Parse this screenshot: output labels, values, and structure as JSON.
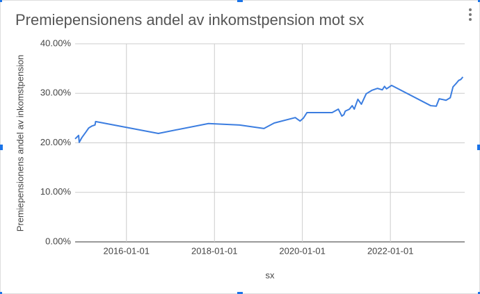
{
  "chart_data": {
    "type": "line",
    "title": "Premiepensionens andel av inkomstpension mot sx",
    "x_label": "sx",
    "y_label": "Premiepensionens andel av inkomstpension",
    "xlim": [
      "2014-11-01",
      "2023-09-10"
    ],
    "xticks": [
      "2016-01-01",
      "2018-01-01",
      "2020-01-01",
      "2022-01-01"
    ],
    "ylim": [
      0,
      40
    ],
    "yticks": [
      {
        "value": 0,
        "label": "0.00%"
      },
      {
        "value": 10,
        "label": "10.00%"
      },
      {
        "value": 20,
        "label": "20.00%"
      },
      {
        "value": 30,
        "label": "30.00%"
      },
      {
        "value": 40,
        "label": "40.00%"
      }
    ],
    "grid": true,
    "x": [
      "2014-11-01",
      "2014-11-30",
      "2014-12-05",
      "2014-12-28",
      "2015-01-30",
      "2015-02-22",
      "2015-03-21",
      "2015-04-15",
      "2015-04-20",
      "2016-09-22",
      "2017-11-12",
      "2018-07-29",
      "2019-02-16",
      "2019-05-12",
      "2019-11-03",
      "2019-12-13",
      "2020-01-10",
      "2020-02-08",
      "2020-09-04",
      "2020-10-26",
      "2020-11-24",
      "2020-12-11",
      "2020-12-22",
      "2021-01-26",
      "2021-02-18",
      "2021-03-07",
      "2021-04-06",
      "2021-05-05",
      "2021-06-14",
      "2021-07-31",
      "2021-09-15",
      "2021-10-26",
      "2021-11-13",
      "2021-11-30",
      "2022-01-11",
      "2022-12-02",
      "2023-01-17",
      "2023-02-10",
      "2023-04-08",
      "2023-05-13",
      "2023-06-05",
      "2023-07-05",
      "2023-07-22",
      "2023-08-09",
      "2023-08-26"
    ],
    "series": [
      {
        "name": "Premiepensionens andel av inkomstpension",
        "color": "#3b7de0",
        "values": [
          20.8,
          21.5,
          20.1,
          21.1,
          22.2,
          23.0,
          23.4,
          23.6,
          24.3,
          21.9,
          23.9,
          23.6,
          22.9,
          24.0,
          25.1,
          24.4,
          25.0,
          26.1,
          26.1,
          26.8,
          25.4,
          25.7,
          26.4,
          26.8,
          27.5,
          26.8,
          28.8,
          27.8,
          29.9,
          30.6,
          31.0,
          30.7,
          31.4,
          30.9,
          31.6,
          27.5,
          27.4,
          28.9,
          28.6,
          29.1,
          31.3,
          32.1,
          32.6,
          32.8,
          33.3
        ]
      }
    ]
  }
}
